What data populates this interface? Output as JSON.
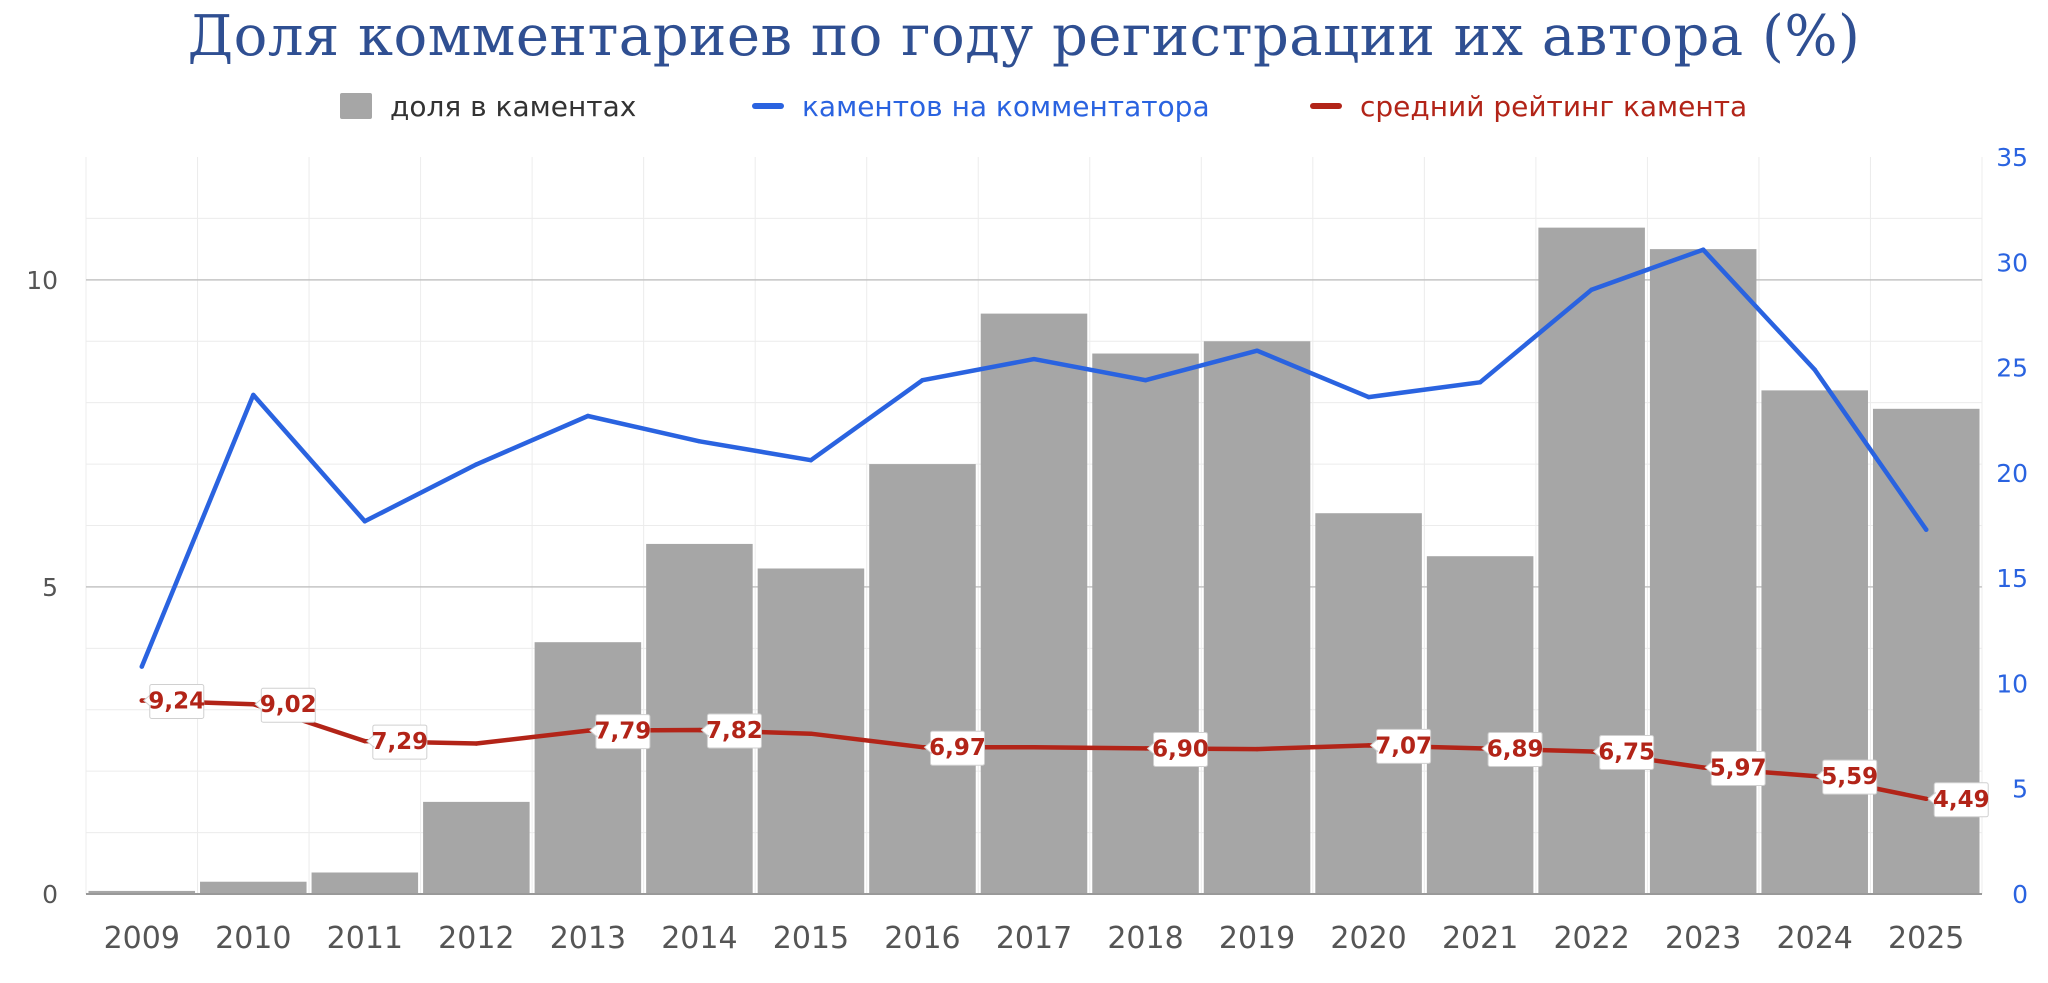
{
  "chart_data": {
    "type": "bar",
    "title": "Доля комментариев по году регистрации их автора (%)",
    "categories": [
      "2009",
      "2010",
      "2011",
      "2012",
      "2013",
      "2014",
      "2015",
      "2016",
      "2017",
      "2018",
      "2019",
      "2020",
      "2021",
      "2022",
      "2023",
      "2024",
      "2025"
    ],
    "series": [
      {
        "name": "доля в каментах",
        "type": "bar",
        "axis": "left",
        "color": "#a6a6a6",
        "values": [
          0.05,
          0.2,
          0.35,
          1.5,
          4.1,
          5.7,
          5.3,
          7.0,
          9.45,
          8.8,
          9.0,
          6.2,
          5.5,
          10.85,
          10.5,
          8.2,
          7.9
        ]
      },
      {
        "name": "каментов на комментатора",
        "type": "line",
        "axis": "right",
        "color": "#2a63e0",
        "values": [
          10.8,
          23.7,
          17.7,
          20.4,
          22.7,
          21.5,
          20.6,
          24.4,
          25.4,
          24.4,
          25.8,
          23.6,
          24.3,
          28.7,
          30.6,
          24.9,
          17.3
        ]
      },
      {
        "name": "средний рейтинг камента",
        "type": "line",
        "axis": "left",
        "color": "#b22418",
        "values": [
          3.15,
          3.09,
          2.49,
          2.45,
          2.66,
          2.67,
          2.61,
          2.39,
          2.39,
          2.37,
          2.36,
          2.42,
          2.37,
          2.32,
          2.06,
          1.92,
          1.55
        ],
        "labels": [
          "9,24",
          "9,02",
          "7,29",
          "",
          "7,79",
          "7,82",
          "",
          "6,97",
          "",
          "6,90",
          "",
          "7,07",
          "6,89",
          "6,75",
          "5,97",
          "5,59",
          "4,49"
        ]
      }
    ],
    "y_left": {
      "min": 0,
      "max": 12,
      "ticks": [
        0,
        5,
        10
      ],
      "tick_labels": [
        "0",
        "5",
        "10"
      ]
    },
    "y_right": {
      "min": 0,
      "max": 35,
      "ticks": [
        0,
        5,
        10,
        15,
        20,
        25,
        30,
        35
      ],
      "tick_labels": [
        "0",
        "5",
        "10",
        "15",
        "20",
        "25",
        "30",
        "35"
      ],
      "color": "#2a63e0"
    },
    "grid": true,
    "legend_position": "top"
  }
}
